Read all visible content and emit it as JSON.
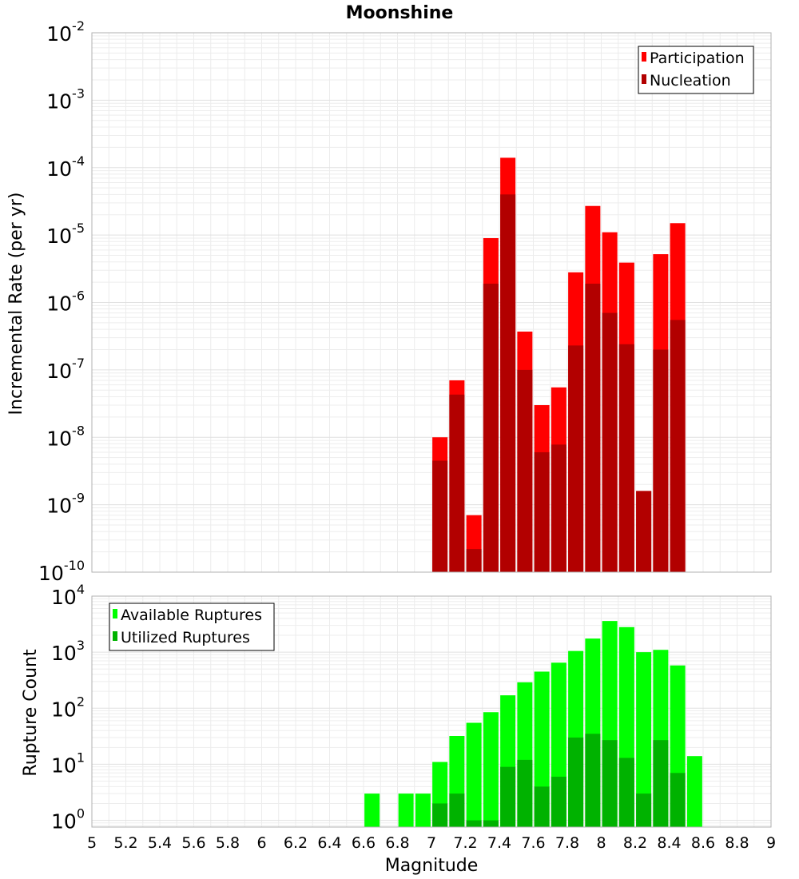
{
  "title": "Moonshine",
  "xlabel": "Magnitude",
  "x_ticks": [
    "5",
    "5.2",
    "5.4",
    "5.6",
    "5.8",
    "6",
    "6.2",
    "6.4",
    "6.6",
    "6.8",
    "7",
    "7.2",
    "7.4",
    "7.6",
    "7.8",
    "8",
    "8.2",
    "8.4",
    "8.6",
    "8.8",
    "9"
  ],
  "chart_data": [
    {
      "type": "bar",
      "ylabel": "Incremental Rate (per yr)",
      "scale": "log",
      "xlim": [
        5,
        9
      ],
      "ylim_exp": [
        -10,
        -2
      ],
      "y_tick_exponents": [
        "-10",
        "-9",
        "-8",
        "-7",
        "-6",
        "-5",
        "-4",
        "-3",
        "-2"
      ],
      "legend": {
        "position": "top-right",
        "entries": [
          "Participation",
          "Nucleation"
        ]
      },
      "grid": true,
      "x": [
        7.05,
        7.15,
        7.25,
        7.35,
        7.45,
        7.55,
        7.65,
        7.75,
        7.85,
        7.95,
        8.05,
        8.15,
        8.25,
        8.35,
        8.45
      ],
      "series": [
        {
          "name": "Participation",
          "color": "#ff0000",
          "values": [
            1e-08,
            7e-08,
            7e-10,
            9e-06,
            0.00014,
            3.7e-07,
            3e-08,
            5.5e-08,
            2.8e-06,
            2.7e-05,
            1.1e-05,
            3.9e-06,
            1.6e-09,
            5.2e-06,
            1.5e-05
          ]
        },
        {
          "name": "Nucleation",
          "color": "#b20000",
          "values": [
            4.5e-09,
            4.3e-08,
            2.2e-10,
            1.9e-06,
            4e-05,
            1e-07,
            6e-09,
            7.8e-09,
            2.3e-07,
            1.9e-06,
            7e-07,
            2.4e-07,
            1.6e-09,
            2e-07,
            5.5e-07
          ]
        }
      ]
    },
    {
      "type": "bar",
      "ylabel": "Rupture Count",
      "scale": "log",
      "xlim": [
        5,
        9
      ],
      "ylim_exp": [
        -0.12,
        4
      ],
      "y_tick_exponents": [
        "0",
        "1",
        "2",
        "3",
        "4"
      ],
      "legend": {
        "position": "top-left",
        "entries": [
          "Available Ruptures",
          "Utilized Ruptures"
        ]
      },
      "grid": true,
      "x": [
        6.65,
        6.85,
        6.95,
        7.05,
        7.15,
        7.25,
        7.35,
        7.45,
        7.55,
        7.65,
        7.75,
        7.85,
        7.95,
        8.05,
        8.15,
        8.25,
        8.35,
        8.45,
        8.55
      ],
      "series": [
        {
          "name": "Available Ruptures",
          "color": "#00ff00",
          "values": [
            3,
            3,
            3,
            11,
            32,
            55,
            85,
            170,
            290,
            450,
            650,
            1050,
            1750,
            3600,
            2800,
            1000,
            1100,
            580,
            14
          ]
        },
        {
          "name": "Utilized Ruptures",
          "color": "#00b200",
          "values": [
            null,
            null,
            null,
            2,
            3,
            1,
            1,
            9,
            12,
            4,
            6,
            30,
            35,
            27,
            13,
            3,
            27,
            7,
            null
          ]
        }
      ]
    }
  ]
}
